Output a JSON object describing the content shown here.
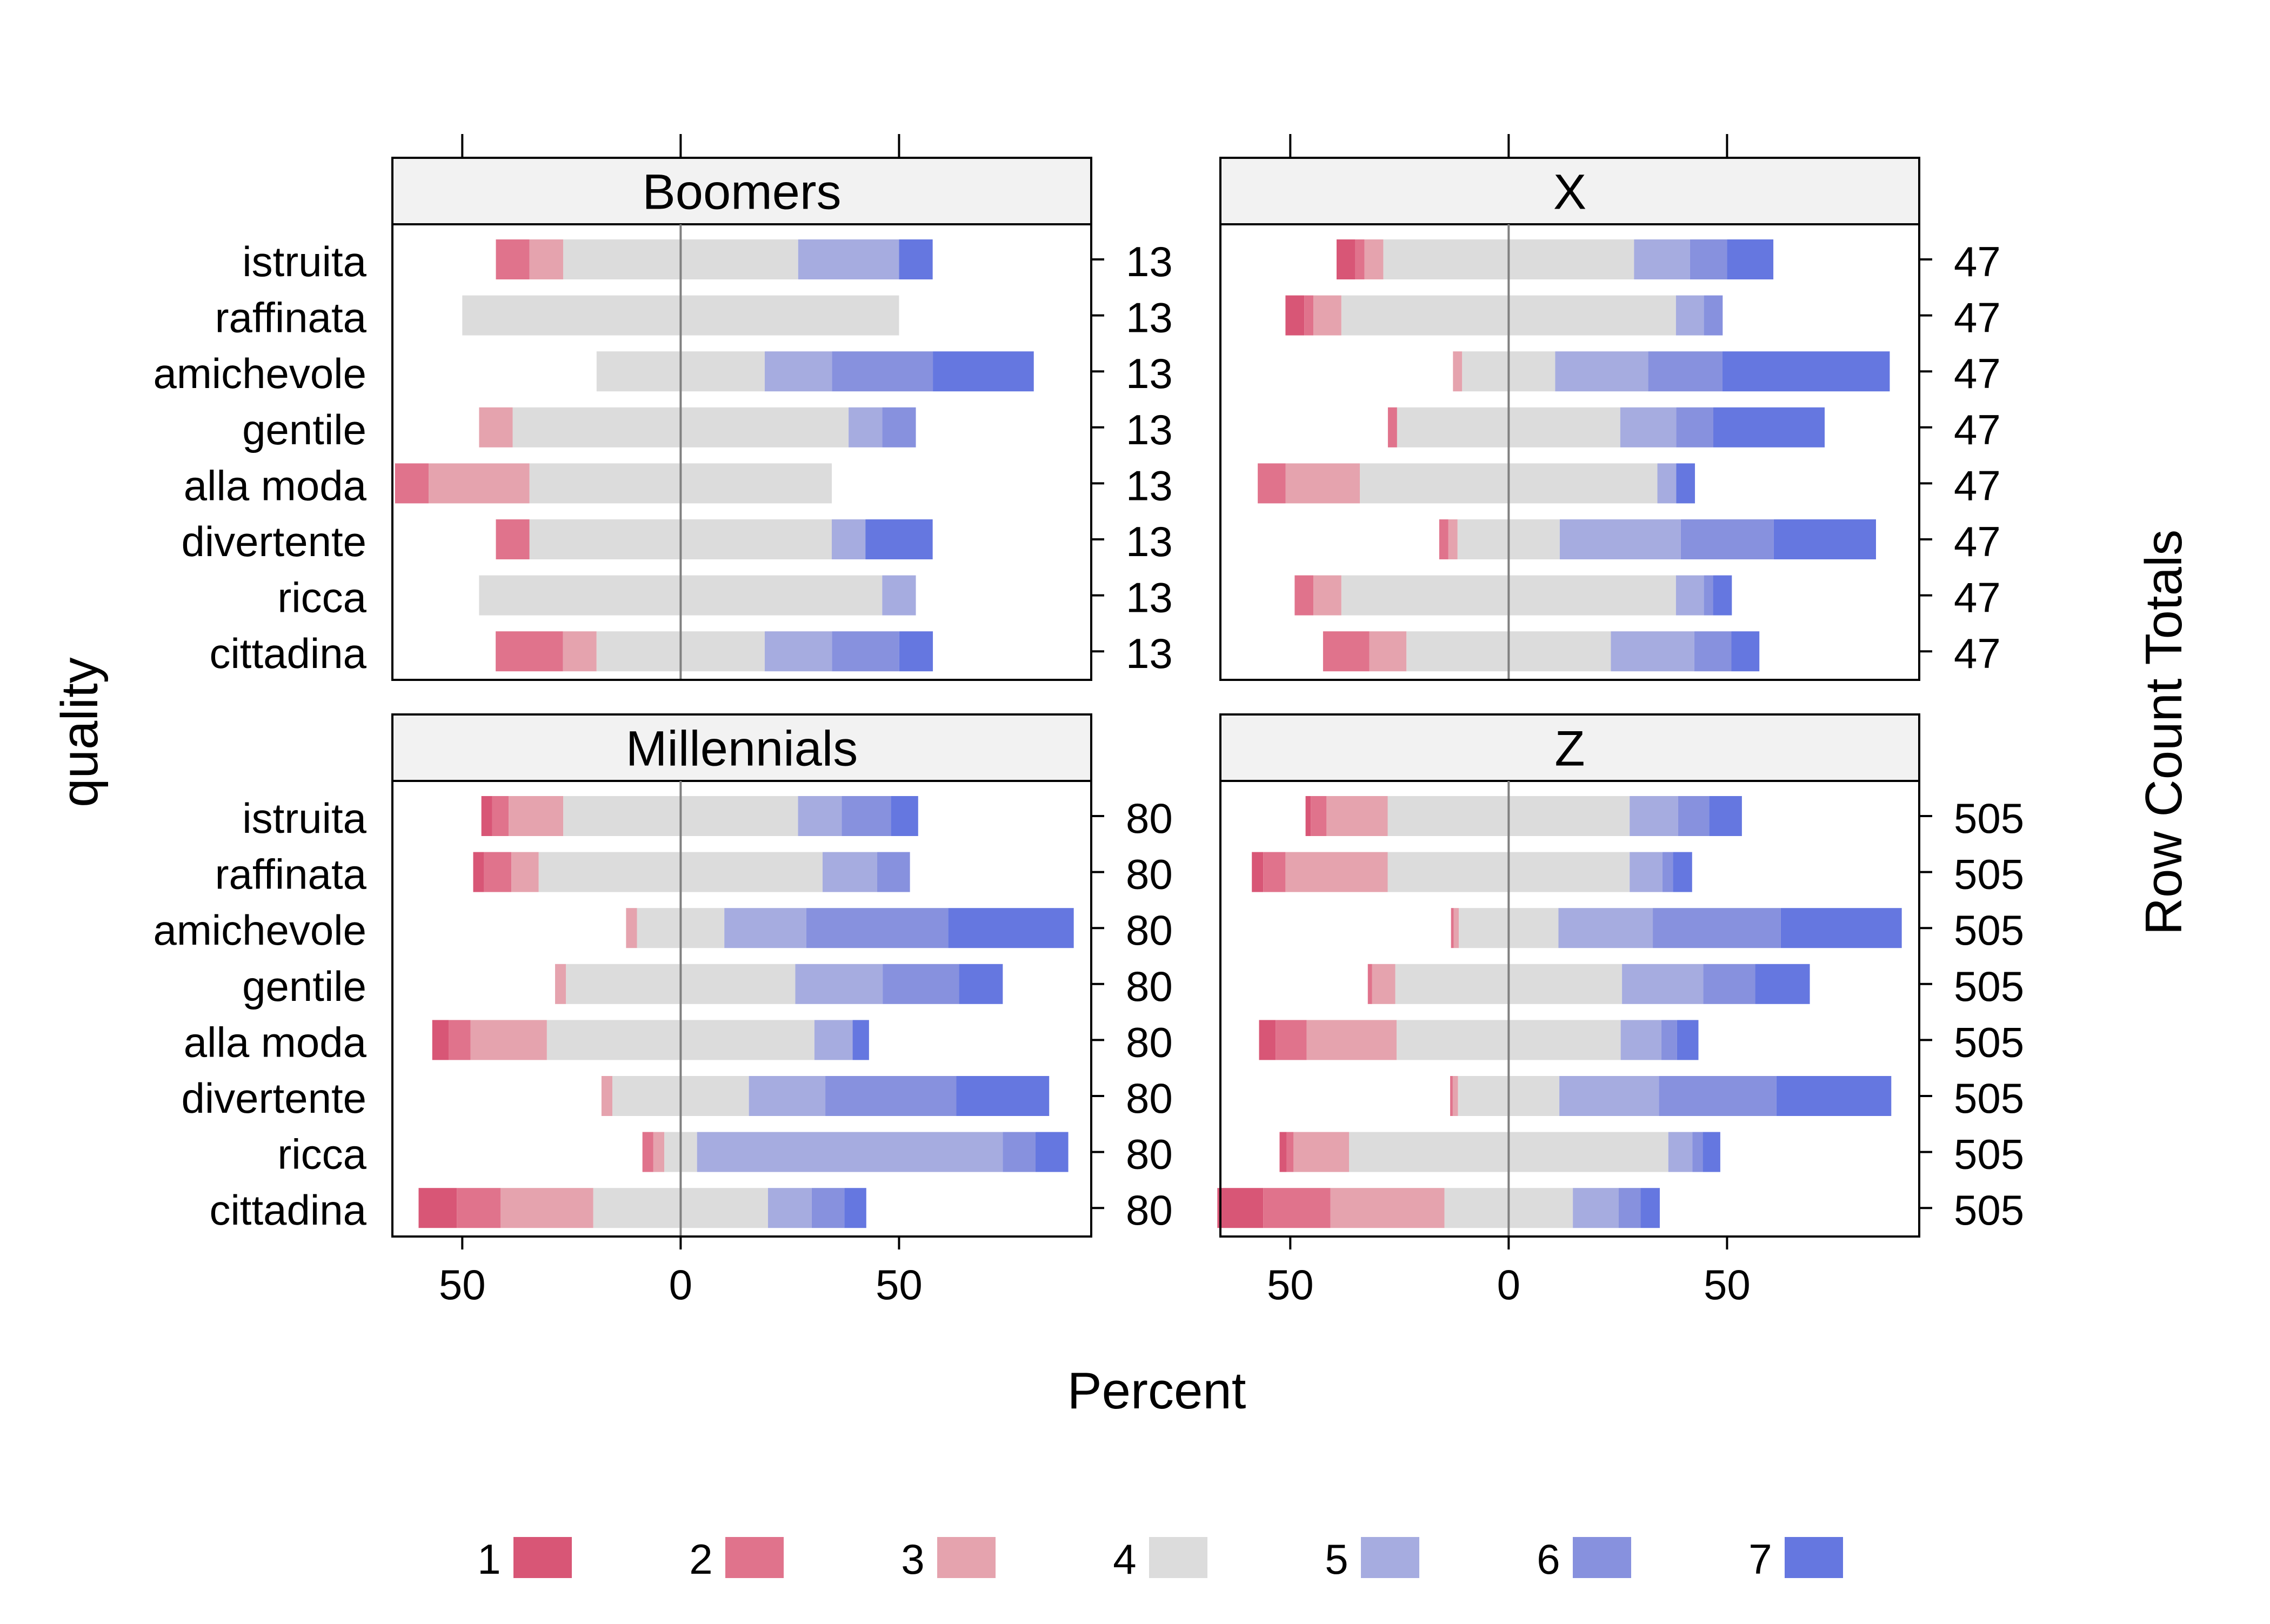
{
  "chart_data": {
    "type": "bar",
    "subtype": "diverging-stacked-likert",
    "x_label": "Percent",
    "y_label": "quality",
    "y2_label": "Row Count Totals",
    "x_ticks": [
      -50,
      0,
      50
    ],
    "x_tick_labels": [
      "50",
      "0",
      "50"
    ],
    "xlim": [
      -66,
      94
    ],
    "grid": false,
    "center_line": true,
    "legend_position": "bottom",
    "categories": [
      "istruita",
      "raffinata",
      "amichevole",
      "gentile",
      "alla moda",
      "divertente",
      "ricca",
      "cittadina"
    ],
    "levels": [
      "1",
      "2",
      "3",
      "4",
      "5",
      "6",
      "7"
    ],
    "level_colors": [
      "#D85676",
      "#E0738C",
      "#E5A3AE",
      "#DCDCDC",
      "#A6ACE0",
      "#8791DE",
      "#6577E0"
    ],
    "panels": [
      {
        "title": "Boomers",
        "row_totals": [
          "13",
          "13",
          "13",
          "13",
          "13",
          "13",
          "13",
          "13"
        ],
        "rows": [
          {
            "category": "istruita",
            "values": [
              0,
              7.7,
              7.7,
              53.8,
              23.1,
              0,
              7.7
            ]
          },
          {
            "category": "raffinata",
            "values": [
              0,
              0,
              0,
              100.0,
              0,
              0,
              0
            ]
          },
          {
            "category": "amichevole",
            "values": [
              0,
              0,
              0,
              38.5,
              15.4,
              23.1,
              23.1
            ]
          },
          {
            "category": "gentile",
            "values": [
              0,
              0,
              7.7,
              76.9,
              7.7,
              7.7,
              0
            ]
          },
          {
            "category": "alla moda",
            "values": [
              0,
              7.7,
              23.1,
              69.2,
              0,
              0,
              0
            ]
          },
          {
            "category": "divertente",
            "values": [
              0,
              7.7,
              0,
              69.2,
              7.7,
              0,
              15.4
            ]
          },
          {
            "category": "ricca",
            "values": [
              0,
              0,
              0,
              92.3,
              7.7,
              0,
              0
            ]
          },
          {
            "category": "cittadina",
            "values": [
              0,
              15.4,
              7.7,
              38.5,
              15.4,
              15.4,
              7.7
            ]
          }
        ]
      },
      {
        "title": "X",
        "row_totals": [
          "47",
          "47",
          "47",
          "47",
          "47",
          "47",
          "47",
          "47"
        ],
        "rows": [
          {
            "category": "istruita",
            "values": [
              4.3,
              2.1,
              4.3,
              57.4,
              12.8,
              8.5,
              10.6
            ]
          },
          {
            "category": "raffinata",
            "values": [
              4.3,
              2.1,
              6.4,
              76.6,
              6.4,
              4.3,
              0
            ]
          },
          {
            "category": "amichevole",
            "values": [
              0,
              0,
              2.1,
              21.3,
              21.3,
              17.0,
              38.3
            ]
          },
          {
            "category": "gentile",
            "values": [
              0,
              2.1,
              0,
              51.1,
              12.8,
              8.5,
              25.5
            ]
          },
          {
            "category": "alla moda",
            "values": [
              0,
              6.4,
              17.0,
              68.1,
              4.3,
              0,
              4.3
            ]
          },
          {
            "category": "divertente",
            "values": [
              0,
              2.1,
              2.1,
              23.4,
              27.7,
              21.3,
              23.4
            ]
          },
          {
            "category": "ricca",
            "values": [
              0,
              4.3,
              6.4,
              76.6,
              6.4,
              2.1,
              4.3
            ]
          },
          {
            "category": "cittadina",
            "values": [
              0,
              10.6,
              8.5,
              46.8,
              19.1,
              8.5,
              6.4
            ]
          }
        ]
      },
      {
        "title": "Millennials",
        "row_totals": [
          "80",
          "80",
          "80",
          "80",
          "80",
          "80",
          "80",
          "80"
        ],
        "rows": [
          {
            "category": "istruita",
            "values": [
              2.5,
              3.75,
              12.5,
              53.75,
              10.0,
              11.25,
              6.25
            ]
          },
          {
            "category": "raffinata",
            "values": [
              2.5,
              6.25,
              6.25,
              65.0,
              12.5,
              7.5,
              0
            ]
          },
          {
            "category": "amichevole",
            "values": [
              0,
              0,
              2.5,
              20.0,
              18.75,
              32.5,
              28.75
            ]
          },
          {
            "category": "gentile",
            "values": [
              0,
              0,
              2.5,
              52.5,
              20.0,
              17.5,
              10.0
            ]
          },
          {
            "category": "alla moda",
            "values": [
              3.75,
              5.0,
              17.5,
              61.25,
              8.75,
              0,
              3.75
            ]
          },
          {
            "category": "divertente",
            "values": [
              0,
              0,
              2.5,
              31.25,
              17.5,
              30.0,
              21.25
            ]
          },
          {
            "category": "ricca",
            "values": [
              0,
              2.5,
              2.5,
              7.5,
              70.0,
              7.5,
              7.5
            ]
          },
          {
            "category": "cittadina",
            "values": [
              8.75,
              10.0,
              21.25,
              40.0,
              10.0,
              7.5,
              5.0
            ]
          }
        ]
      },
      {
        "title": "Z",
        "row_totals": [
          "505",
          "505",
          "505",
          "505",
          "505",
          "505",
          "505",
          "505"
        ],
        "rows": [
          {
            "category": "istruita",
            "values": [
              1.2,
              3.6,
              14.0,
              55.4,
              11.1,
              7.1,
              7.5
            ]
          },
          {
            "category": "raffinata",
            "values": [
              2.6,
              5.1,
              23.4,
              55.4,
              7.5,
              2.4,
              4.4
            ]
          },
          {
            "category": "amichevole",
            "values": [
              0,
              0.6,
              1.2,
              22.8,
              21.6,
              29.3,
              27.7
            ]
          },
          {
            "category": "gentile",
            "values": [
              0,
              1.0,
              5.3,
              51.9,
              18.6,
              11.9,
              12.5
            ]
          },
          {
            "category": "alla moda",
            "values": [
              3.8,
              7.1,
              20.6,
              51.3,
              9.3,
              3.6,
              4.9
            ]
          },
          {
            "category": "divertente",
            "values": [
              0,
              0.6,
              1.2,
              23.2,
              22.8,
              26.9,
              26.3
            ]
          },
          {
            "category": "ricca",
            "values": [
              1.6,
              1.6,
              12.7,
              73.1,
              5.5,
              2.4,
              4.0
            ]
          },
          {
            "category": "cittadina",
            "values": [
              10.5,
              15.4,
              26.1,
              29.4,
              10.5,
              5.0,
              4.4
            ]
          }
        ]
      }
    ]
  }
}
